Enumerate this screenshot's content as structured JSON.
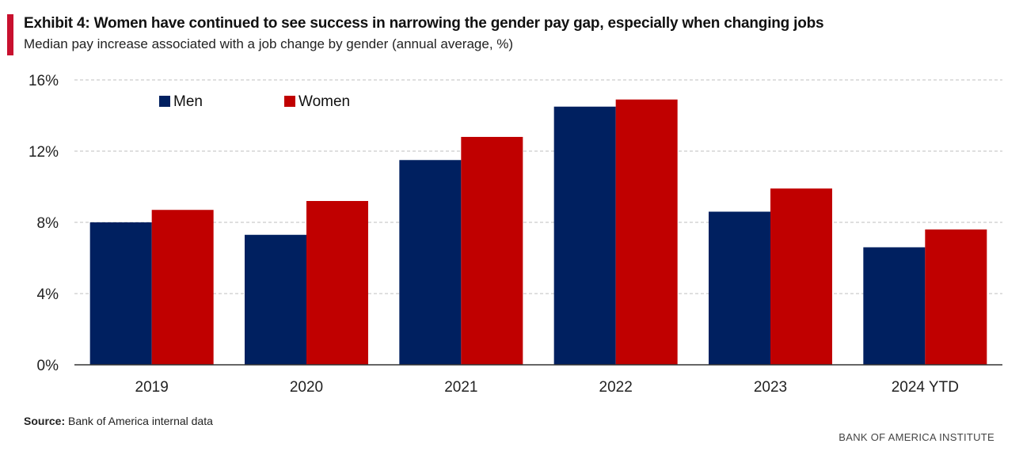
{
  "header": {
    "title": "Exhibit 4: Women have continued to see success in narrowing the gender pay gap, especially when changing jobs",
    "subtitle": "Median pay increase associated with a job change by gender (annual average, %)"
  },
  "footer": {
    "source_label": "Source:",
    "source_text": " Bank of America internal data",
    "brand": "BANK OF AMERICA INSTITUTE"
  },
  "colors": {
    "men": "#002060",
    "women": "#c00000",
    "accent": "#c8102e",
    "grid": "#bfbfbf"
  },
  "chart_data": {
    "type": "bar",
    "title": "Exhibit 4: Women have continued to see success in narrowing the gender pay gap, especially when changing jobs",
    "subtitle": "Median pay increase associated with a job change by gender (annual average, %)",
    "categories": [
      "2019",
      "2020",
      "2021",
      "2022",
      "2023",
      "2024 YTD"
    ],
    "series": [
      {
        "name": "Men",
        "values": [
          8.0,
          7.3,
          11.5,
          14.5,
          8.6,
          6.6
        ]
      },
      {
        "name": "Women",
        "values": [
          8.7,
          9.2,
          12.8,
          14.9,
          9.9,
          7.6
        ]
      }
    ],
    "ylim": [
      0,
      16
    ],
    "yticks": [
      0,
      4,
      8,
      12,
      16
    ],
    "ytick_labels": [
      "0%",
      "4%",
      "8%",
      "12%",
      "16%"
    ],
    "grid": true,
    "legend": "top-left"
  }
}
